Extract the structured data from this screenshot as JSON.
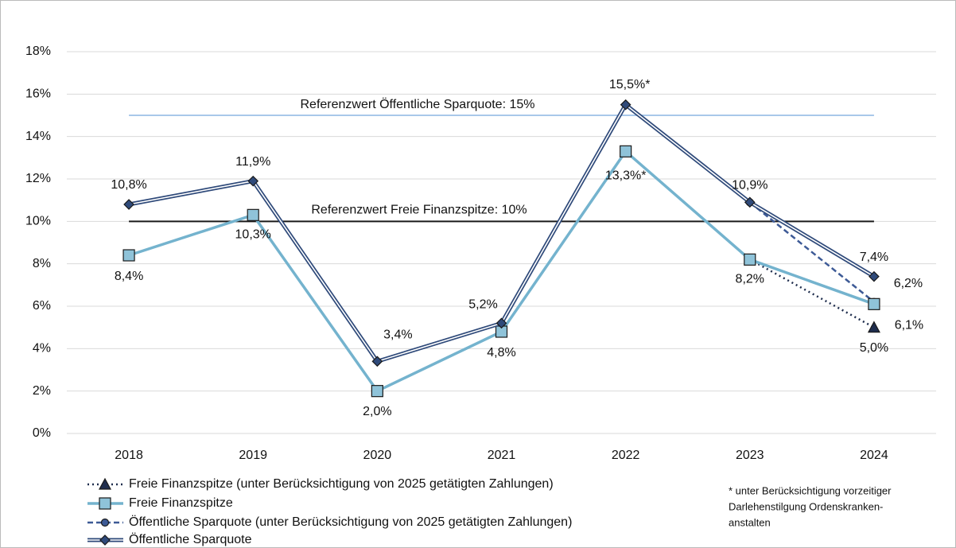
{
  "chart_data": {
    "type": "line",
    "categories": [
      "2018",
      "2019",
      "2020",
      "2021",
      "2022",
      "2023",
      "2024"
    ],
    "ylim": [
      0,
      18
    ],
    "yticks": [
      {
        "value": 0,
        "label": "0%"
      },
      {
        "value": 2,
        "label": "2%"
      },
      {
        "value": 4,
        "label": "4%"
      },
      {
        "value": 6,
        "label": "6%"
      },
      {
        "value": 8,
        "label": "8%"
      },
      {
        "value": 10,
        "label": "10%"
      },
      {
        "value": 12,
        "label": "12%"
      },
      {
        "value": 14,
        "label": "14%"
      },
      {
        "value": 16,
        "label": "16%"
      },
      {
        "value": 18,
        "label": "18%"
      }
    ],
    "grid": true,
    "reference_lines": [
      {
        "value": 15,
        "label": "Referenzwert Öffentliche Sparquote: 15%",
        "color": "#a9c8ea"
      },
      {
        "value": 10,
        "label": "Referenzwert Freie Finanzspitze: 10%",
        "color": "#1a1a1a"
      }
    ],
    "series": [
      {
        "name": "Freie Finanzspitze (unter Berücksichtigung von 2025 getätigten Zahlungen)",
        "color": "#1f2d4d",
        "style": "dotted",
        "marker": "triangle",
        "values": [
          null,
          null,
          null,
          null,
          null,
          8.2,
          5.0
        ],
        "value_labels": [
          null,
          null,
          null,
          null,
          null,
          null,
          "5,0%"
        ]
      },
      {
        "name": "Freie Finanzspitze",
        "color": "#74b3ce",
        "style": "solid",
        "marker": "square",
        "values": [
          8.4,
          10.3,
          2.0,
          4.8,
          13.3,
          8.2,
          6.1
        ],
        "value_labels": [
          "8,4%",
          "10,3%",
          "2,0%",
          "4,8%",
          "13,3%*",
          "8,2%",
          "6,1%"
        ]
      },
      {
        "name": "Öffentliche Sparquote (unter Berücksichtigung von 2025 getätigten Zahlungen)",
        "color": "#3d5a96",
        "style": "dashed",
        "marker": "circle",
        "values": [
          null,
          null,
          null,
          null,
          null,
          10.9,
          6.2
        ],
        "value_labels": [
          null,
          null,
          null,
          null,
          null,
          null,
          "6,2%"
        ]
      },
      {
        "name": "Öffentliche Sparquote",
        "color": "#2f4a7a",
        "style": "double",
        "marker": "diamond",
        "values": [
          10.8,
          11.9,
          3.4,
          5.2,
          15.5,
          10.9,
          7.4
        ],
        "value_labels": [
          "10,8%",
          "11,9%",
          "3,4%",
          "5,2%",
          "15,5%*",
          "10,9%",
          "7,4%"
        ]
      }
    ],
    "footnote": [
      "* unter Berücksichtigung vorzeitiger",
      "Darlehenstilgung Ordenskranken-",
      "anstalten"
    ]
  }
}
